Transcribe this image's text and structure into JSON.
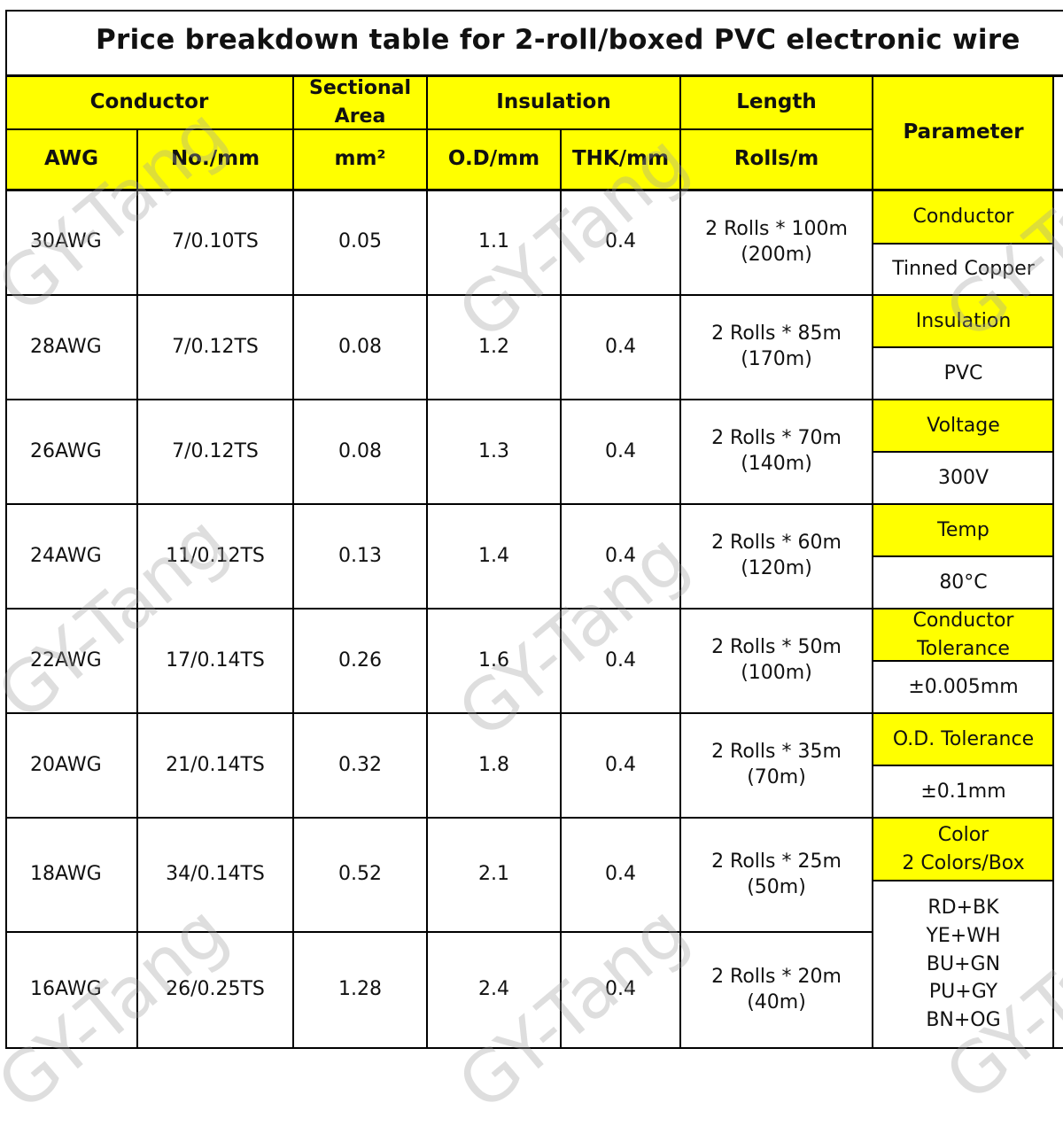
{
  "title": "Price breakdown table for 2-roll/boxed PVC electronic wire",
  "headers": {
    "conductor": "Conductor",
    "sectional_area": "Sectional\nArea",
    "insulation": "Insulation",
    "length": "Length",
    "parameter": "Parameter",
    "awg": "AWG",
    "no_mm": "No./mm",
    "mm2": "mm²",
    "od_mm": "O.D/mm",
    "thk_mm": "THK/mm",
    "rolls_m": "Rolls/m"
  },
  "rows": [
    {
      "awg": "30AWG",
      "no_mm": "7/0.10TS",
      "area": "0.05",
      "od": "1.1",
      "thk": "0.4",
      "length": "2 Rolls * 100m\n(200m)"
    },
    {
      "awg": "28AWG",
      "no_mm": "7/0.12TS",
      "area": "0.08",
      "od": "1.2",
      "thk": "0.4",
      "length": "2 Rolls * 85m\n(170m)"
    },
    {
      "awg": "26AWG",
      "no_mm": "7/0.12TS",
      "area": "0.08",
      "od": "1.3",
      "thk": "0.4",
      "length": "2 Rolls * 70m\n(140m)"
    },
    {
      "awg": "24AWG",
      "no_mm": "11/0.12TS",
      "area": "0.13",
      "od": "1.4",
      "thk": "0.4",
      "length": "2 Rolls * 60m\n(120m)"
    },
    {
      "awg": "22AWG",
      "no_mm": "17/0.14TS",
      "area": "0.26",
      "od": "1.6",
      "thk": "0.4",
      "length": "2 Rolls * 50m\n(100m)"
    },
    {
      "awg": "20AWG",
      "no_mm": "21/0.14TS",
      "area": "0.32",
      "od": "1.8",
      "thk": "0.4",
      "length": "2 Rolls * 35m\n(70m)"
    },
    {
      "awg": "18AWG",
      "no_mm": "34/0.14TS",
      "area": "0.52",
      "od": "2.1",
      "thk": "0.4",
      "length": "2 Rolls * 25m\n(50m)"
    },
    {
      "awg": "16AWG",
      "no_mm": "26/0.25TS",
      "area": "1.28",
      "od": "2.4",
      "thk": "0.4",
      "length": "2 Rolls * 20m\n(40m)"
    }
  ],
  "parameters": [
    {
      "label": "Conductor",
      "value": "Tinned Copper"
    },
    {
      "label": "Insulation",
      "value": "PVC"
    },
    {
      "label": "Voltage",
      "value": "300V"
    },
    {
      "label": "Temp",
      "value": "80°C"
    },
    {
      "label": "Conductor\nTolerance",
      "value": "±0.005mm"
    },
    {
      "label": "O.D. Tolerance",
      "value": "±0.1mm"
    },
    {
      "label": "Color\n2 Colors/Box",
      "value": "RD+BK\nYE+WH\nBU+GN\nPU+GY\nBN+OG"
    }
  ],
  "watermark": "GY-Tang"
}
